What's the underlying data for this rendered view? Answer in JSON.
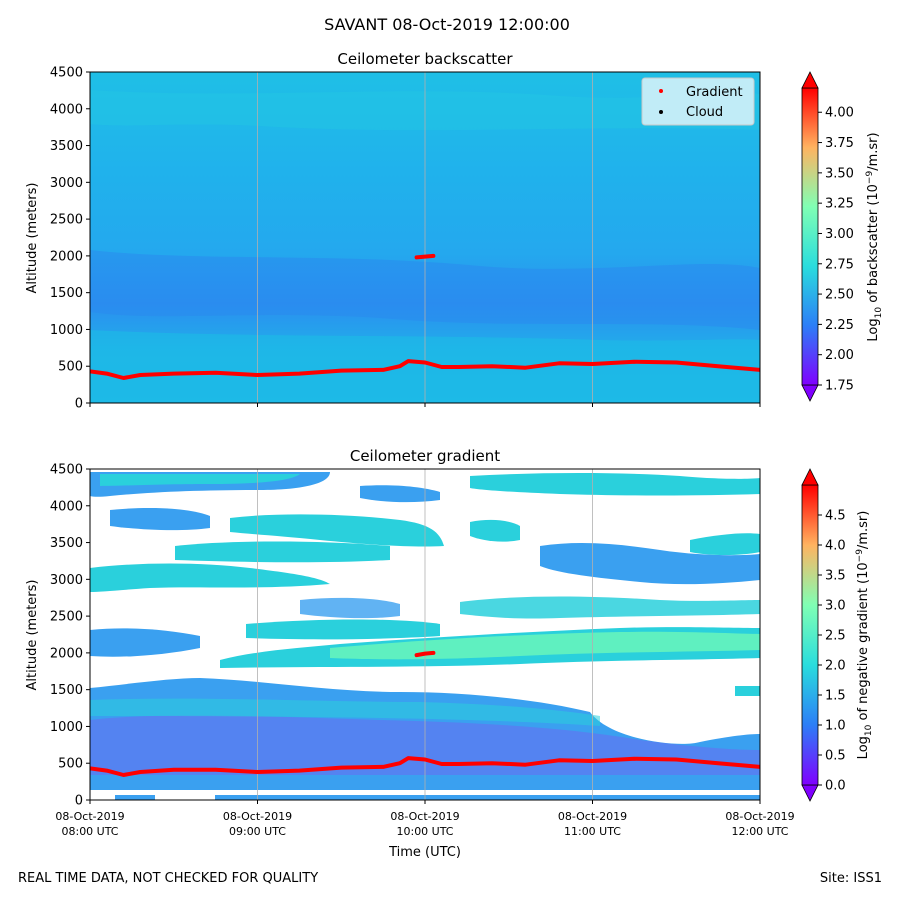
{
  "figure": {
    "suptitle": "SAVANT 08-Oct-2019 12:00:00",
    "footer_left": "REAL TIME DATA, NOT CHECKED FOR QUALITY",
    "footer_right": "Site: ISS1"
  },
  "colors": {
    "gradient_marker": "#ff0000",
    "cloud_marker": "#000000",
    "backscatter_background": "#1fb8e8",
    "gradient_core": "#5ff0c0"
  },
  "chart_data": [
    {
      "type": "heatmap",
      "title": "Ceilometer backscatter",
      "ylabel": "Altitude (meters)",
      "xlabel": "",
      "ylim": [
        0,
        4500
      ],
      "yticks": [
        0,
        500,
        1000,
        1500,
        2000,
        2500,
        3000,
        3500,
        4000,
        4500
      ],
      "xlim_hours": [
        8,
        12
      ],
      "xtick_labels": [],
      "grid": "vertical",
      "colormap": "rainbow",
      "colorbar": {
        "label_prefix": "Log",
        "label_sub": "10",
        "label_mid": " of backscatter (10",
        "label_sup": "−9",
        "label_suffix": "/m.sr)",
        "range": [
          1.75,
          4.2
        ],
        "ticks": [
          "1.75",
          "2.00",
          "2.25",
          "2.50",
          "2.75",
          "3.00",
          "3.25",
          "3.50",
          "3.75",
          "4.00"
        ]
      },
      "legend": {
        "position": "top-right",
        "entries": [
          "Gradient",
          "Cloud"
        ]
      },
      "series": [
        {
          "name": "Gradient",
          "x_hours": [
            8.0,
            8.1,
            8.2,
            8.3,
            8.5,
            8.75,
            9.0,
            9.25,
            9.5,
            9.75,
            9.85,
            9.9,
            10.0,
            10.1,
            10.2,
            10.4,
            10.6,
            10.8,
            11.0,
            11.25,
            11.5,
            11.75,
            12.0
          ],
          "y_meters": [
            430,
            400,
            340,
            380,
            400,
            410,
            380,
            400,
            440,
            450,
            500,
            570,
            550,
            490,
            490,
            500,
            480,
            540,
            530,
            560,
            550,
            500,
            450
          ]
        },
        {
          "name": "Gradient",
          "x_hours": [
            9.95,
            10.0,
            10.05
          ],
          "y_meters": [
            1980,
            1990,
            2000
          ]
        }
      ]
    },
    {
      "type": "heatmap",
      "title": "Ceilometer gradient",
      "ylabel": "Altitude (meters)",
      "xlabel": "Time (UTC)",
      "ylim": [
        0,
        4500
      ],
      "yticks": [
        0,
        500,
        1000,
        1500,
        2000,
        2500,
        3000,
        3500,
        4000,
        4500
      ],
      "xlim_hours": [
        8,
        12
      ],
      "xtick_labels": [
        [
          "08-Oct-2019",
          "08:00 UTC"
        ],
        [
          "08-Oct-2019",
          "09:00 UTC"
        ],
        [
          "08-Oct-2019",
          "10:00 UTC"
        ],
        [
          "08-Oct-2019",
          "11:00 UTC"
        ],
        [
          "08-Oct-2019",
          "12:00 UTC"
        ]
      ],
      "grid": "vertical",
      "colormap": "rainbow",
      "colorbar": {
        "label_prefix": "Log",
        "label_sub": "10",
        "label_mid": " of negative gradient (10",
        "label_sup": "−9",
        "label_suffix": "/m.sr)",
        "range": [
          0.0,
          5.0
        ],
        "ticks": [
          "0.0",
          "0.5",
          "1.0",
          "1.5",
          "2.0",
          "2.5",
          "3.0",
          "3.5",
          "4.0",
          "4.5"
        ]
      },
      "series": [
        {
          "name": "Gradient",
          "x_hours": [
            8.0,
            8.1,
            8.2,
            8.3,
            8.5,
            8.75,
            9.0,
            9.25,
            9.5,
            9.75,
            9.85,
            9.9,
            10.0,
            10.1,
            10.2,
            10.4,
            10.6,
            10.8,
            11.0,
            11.25,
            11.5,
            11.75,
            12.0
          ],
          "y_meters": [
            430,
            400,
            340,
            380,
            410,
            410,
            380,
            400,
            440,
            450,
            500,
            570,
            550,
            490,
            490,
            500,
            480,
            540,
            530,
            560,
            550,
            500,
            450
          ]
        },
        {
          "name": "Gradient",
          "x_hours": [
            9.95,
            10.0,
            10.05
          ],
          "y_meters": [
            1970,
            1990,
            2000
          ]
        }
      ]
    }
  ]
}
